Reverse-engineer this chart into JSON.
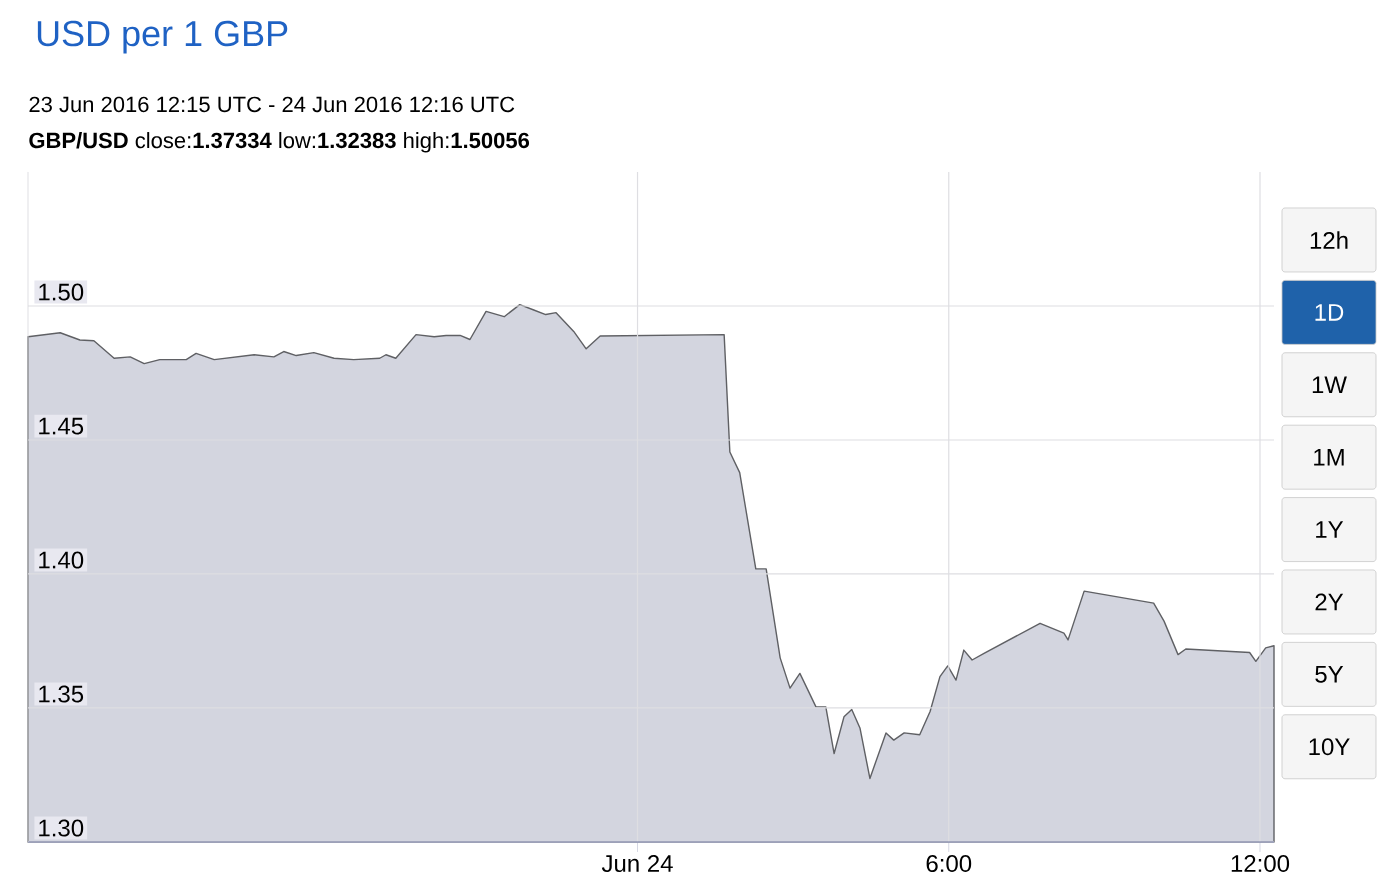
{
  "chart_data": {
    "type": "area",
    "title": "USD per 1 GBP",
    "subtitle": "23 Jun 2016 12:15 UTC - 24 Jun 2016 12:16 UTC",
    "annotations": [
      "**GBP/USD** close:**1.37334** low:**1.32383** high:**1.50056**",
      "12h",
      "1D",
      "1W",
      "1M",
      "1Y",
      "2Y",
      "5Y",
      "10Y"
    ],
    "x": [
      -11.75,
      -11.13,
      -10.75,
      -10.48,
      -10.09,
      -9.78,
      -9.51,
      -9.21,
      -8.7,
      -8.51,
      -8.16,
      -7.39,
      -7.01,
      -6.82,
      -6.58,
      -6.24,
      -5.85,
      -5.47,
      -4.97,
      -4.85,
      -4.66,
      -4.27,
      -3.92,
      -3.69,
      -3.42,
      -3.23,
      -2.92,
      -2.57,
      -2.27,
      -2.0,
      -1.77,
      -1.57,
      -1.23,
      -0.99,
      -0.72,
      1.67,
      1.78,
      1.97,
      2.28,
      2.48,
      2.75,
      2.94,
      3.13,
      3.44,
      3.63,
      3.79,
      3.98,
      4.13,
      4.29,
      4.48,
      4.79,
      4.94,
      5.14,
      5.44,
      5.64,
      5.83,
      5.98,
      6.14,
      6.29,
      6.45,
      6.68,
      7.76,
      8.22,
      8.3,
      8.61,
      9.95,
      10.15,
      10.42,
      10.57,
      11.8,
      11.92,
      12.11,
      12.27
    ],
    "series": [
      {
        "color": "#d3d5df",
        "values": [
          1.4885,
          1.49,
          1.4873,
          1.487,
          1.4805,
          1.481,
          1.4785,
          1.48,
          1.48,
          1.4823,
          1.48,
          1.4818,
          1.481,
          1.483,
          1.4815,
          1.4826,
          1.4805,
          1.48,
          1.4805,
          1.4818,
          1.4805,
          1.4893,
          1.4885,
          1.489,
          1.489,
          1.4875,
          1.498,
          1.496,
          1.5005,
          1.4985,
          1.4968,
          1.4975,
          1.4905,
          1.484,
          1.4888,
          1.4893,
          1.4455,
          1.4378,
          1.4019,
          1.4019,
          1.3687,
          1.3574,
          1.3629,
          1.3504,
          1.3504,
          1.333,
          1.3467,
          1.3494,
          1.3424,
          1.3237,
          1.3407,
          1.338,
          1.3407,
          1.34,
          1.3487,
          1.3617,
          1.3657,
          1.3604,
          1.3716,
          1.3679,
          1.3704,
          1.3816,
          1.3779,
          1.3754,
          1.3936,
          1.3891,
          1.3824,
          1.3699,
          1.372,
          1.3707,
          1.3674,
          1.3724,
          1.3732
        ]
      }
    ],
    "xlim": [
      -11.75,
      12.27
    ],
    "xticks": [
      {
        "value": 0,
        "label": "Jun 24"
      },
      {
        "value": 6,
        "label": "6:00"
      },
      {
        "value": 12,
        "label": "12:00"
      }
    ],
    "ylim": [
      1.3,
      1.55
    ],
    "yticks": [
      {
        "value": 1.3,
        "label": "1.30"
      },
      {
        "value": 1.35,
        "label": "1.35"
      },
      {
        "value": 1.4,
        "label": "1.40"
      },
      {
        "value": 1.45,
        "label": "1.45"
      },
      {
        "value": 1.5,
        "label": "1.50"
      }
    ],
    "grid": true
  }
}
